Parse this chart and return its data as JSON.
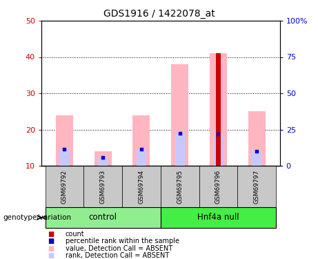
{
  "title": "GDS1916 / 1422078_at",
  "samples": [
    "GSM69792",
    "GSM69793",
    "GSM69794",
    "GSM69795",
    "GSM69796",
    "GSM69797"
  ],
  "groups": [
    {
      "label": "control",
      "indices": [
        0,
        1,
        2
      ]
    },
    {
      "label": "Hnf4a null",
      "indices": [
        3,
        4,
        5
      ]
    }
  ],
  "ylim_left": [
    10,
    50
  ],
  "ylim_right": [
    0,
    100
  ],
  "yticks_left": [
    10,
    20,
    30,
    40,
    50
  ],
  "yticks_right": [
    0,
    25,
    50,
    75,
    100
  ],
  "ytick_labels_right": [
    "0",
    "25",
    "50",
    "75",
    "100%"
  ],
  "pink_bar_values": [
    24,
    14,
    24,
    38,
    41,
    25
  ],
  "pink_bar_base": 10,
  "lavender_bar_values": [
    14.5,
    12.5,
    14.5,
    19,
    18.5,
    14
  ],
  "blue_dot_values": [
    14.5,
    12.2,
    14.5,
    19,
    18.7,
    14
  ],
  "red_bar_values": [
    10,
    10,
    10,
    10,
    41,
    10
  ],
  "red_bar_base": 10,
  "bar_width": 0.45,
  "pink_color": "#FFB6C1",
  "lavender_color": "#C8C8FF",
  "red_color": "#CC0000",
  "blue_color": "#0000CC",
  "left_axis_color": "#CC0000",
  "right_axis_color": "#0000CC",
  "bg_color_label": "#C8C8C8",
  "group_bg_control": "#90EE90",
  "group_bg_hnf4a": "#44EE44",
  "legend_items": [
    {
      "label": "count",
      "color": "#CC0000"
    },
    {
      "label": "percentile rank within the sample",
      "color": "#0000CC"
    },
    {
      "label": "value, Detection Call = ABSENT",
      "color": "#FFB6C1"
    },
    {
      "label": "rank, Detection Call = ABSENT",
      "color": "#C8C8FF"
    }
  ]
}
